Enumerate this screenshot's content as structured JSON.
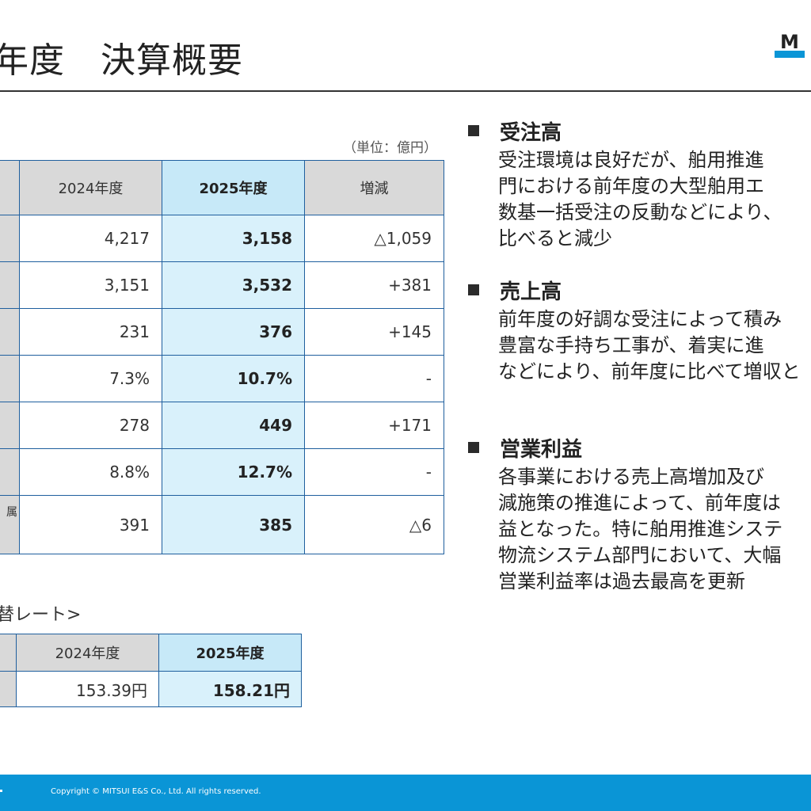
{
  "header": {
    "title": "年度　決算概要",
    "logo_letter": "M"
  },
  "main_table": {
    "unit": "（単位：億円）",
    "header_label": "",
    "col_prev": "2024年度",
    "col_cur": "2025年度",
    "col_diff": "増減",
    "rows": [
      {
        "label": "",
        "prev": "4,217",
        "cur": "3,158",
        "diff": "△1,059"
      },
      {
        "label": "",
        "prev": "3,151",
        "cur": "3,532",
        "diff": "+381"
      },
      {
        "label": "",
        "prev": "231",
        "cur": "376",
        "diff": "+145"
      },
      {
        "label": "",
        "prev": "7.3%",
        "cur": "10.7%",
        "diff": "-"
      },
      {
        "label": "",
        "prev": "278",
        "cur": "449",
        "diff": "+171"
      },
      {
        "label": "",
        "prev": "8.8%",
        "cur": "12.7%",
        "diff": "-"
      },
      {
        "label": "属",
        "prev": "391",
        "cur": "385",
        "diff": "△6"
      }
    ]
  },
  "fx_table": {
    "caption": "替レート>",
    "header_label": "",
    "col_prev": "2024年度",
    "col_cur": "2025年度",
    "row": {
      "label": "",
      "prev": "153.39円",
      "cur": "158.21円"
    }
  },
  "sections": [
    {
      "heading": "受注高",
      "lines": [
        "受注環境は良好だが、舶用推進",
        "門における前年度の大型舶用エ",
        "数基一括受注の反動などにより、",
        "比べると減少"
      ]
    },
    {
      "heading": "売上高",
      "lines": [
        "前年度の好調な受注によって積み",
        "豊富な手持ち工事が、着実に進",
        "などにより、前年度に比べて増収と"
      ]
    },
    {
      "heading": "営業利益",
      "lines": [
        "各事業における売上高増加及び",
        "減施策の推進によって、前年度は",
        "益となった。特に舶用推進システ",
        "物流システム部門において、大幅",
        "営業利益率は過去最高を更新"
      ]
    }
  ],
  "footer": {
    "copyright": "Copyright © MITSUI E&S Co., Ltd. All rights reserved."
  },
  "colors": {
    "accent_blue": "#0a95d6",
    "table_border": "#1f5f9e",
    "highlight_column": "#d9f1fb",
    "header_gray": "#d9d9d9"
  }
}
